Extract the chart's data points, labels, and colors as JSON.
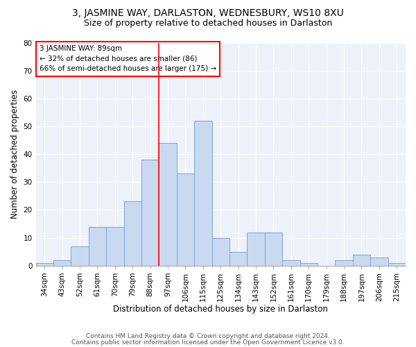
{
  "title": "3, JASMINE WAY, DARLASTON, WEDNESBURY, WS10 8XU",
  "subtitle": "Size of property relative to detached houses in Darlaston",
  "xlabel": "Distribution of detached houses by size in Darlaston",
  "ylabel": "Number of detached properties",
  "categories": [
    "34sqm",
    "43sqm",
    "52sqm",
    "61sqm",
    "70sqm",
    "79sqm",
    "88sqm",
    "97sqm",
    "106sqm",
    "115sqm",
    "125sqm",
    "134sqm",
    "143sqm",
    "152sqm",
    "161sqm",
    "170sqm",
    "179sqm",
    "188sqm",
    "197sqm",
    "206sqm",
    "215sqm"
  ],
  "values": [
    1,
    2,
    7,
    14,
    14,
    23,
    38,
    44,
    33,
    52,
    10,
    5,
    12,
    12,
    2,
    1,
    0,
    2,
    4,
    3,
    1
  ],
  "bar_color": "#c9d9f0",
  "bar_edge_color": "#7aa4d4",
  "red_line_index": 6,
  "annotation_line1": "3 JASMINE WAY: 89sqm",
  "annotation_line2": "← 32% of detached houses are smaller (86)",
  "annotation_line3": "66% of semi-detached houses are larger (175) →",
  "annotation_box_color": "white",
  "annotation_box_edge_color": "red",
  "footer1": "Contains HM Land Registry data © Crown copyright and database right 2024.",
  "footer2": "Contains public sector information licensed under the Open Government Licence v3.0.",
  "ylim": [
    0,
    80
  ],
  "yticks": [
    0,
    10,
    20,
    30,
    40,
    50,
    60,
    70,
    80
  ],
  "background_color": "#eef2fa",
  "title_fontsize": 10,
  "subtitle_fontsize": 9,
  "label_fontsize": 8.5,
  "tick_fontsize": 7.5,
  "annotation_fontsize": 7.5,
  "footer_fontsize": 6.5
}
